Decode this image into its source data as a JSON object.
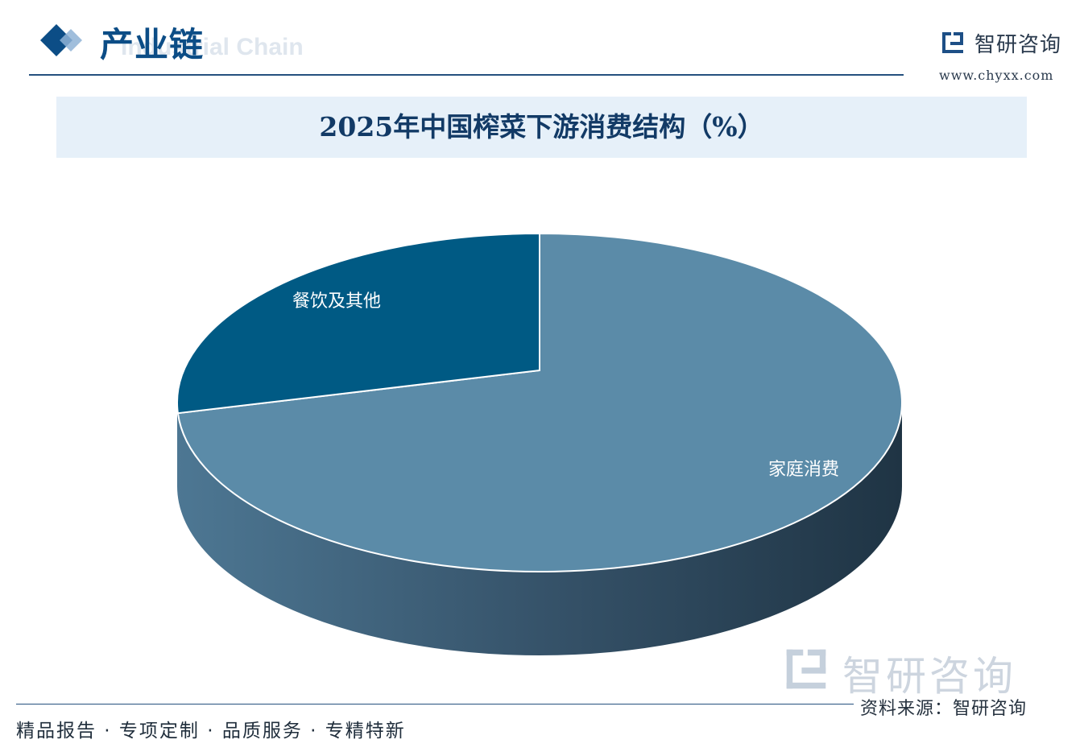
{
  "header": {
    "section_title": "产业链",
    "section_subtitle": "Industrial Chain",
    "brand_name": "智研咨询",
    "brand_url": "www.chyxx.com"
  },
  "chart_data": {
    "type": "pie",
    "title": "2025年中国榨菜下游消费结构（%）",
    "categories": [
      "家庭消费",
      "餐饮及其他"
    ],
    "values": [
      74,
      26
    ],
    "colors": [
      "#5b8ba8",
      "#005a84"
    ],
    "style": "3d"
  },
  "footer": {
    "watermark": "智研咨询",
    "source": "资料来源：智研咨询",
    "tagline": "精品报告 · 专项定制 · 品质服务 · 专精特新"
  }
}
